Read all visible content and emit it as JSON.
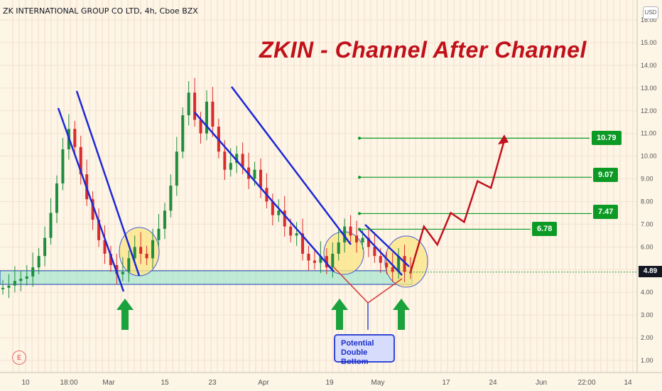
{
  "symbol_line": "ZK INTERNATIONAL GROUP CO LTD, 4h, Cboe BZX",
  "currency": "USD",
  "headline": "ZKIN - Channel After Channel",
  "callout_line1": "Potential",
  "callout_line2": "Double Bottom",
  "current_price": "4.89",
  "event_badge": "E",
  "colors": {
    "bull": "#1e8e3e",
    "bear": "#d92b2b",
    "channel": "#1c27d6",
    "projection": "#c1121f",
    "target": "#0c9a25",
    "support_fill": "#a8e6d0",
    "highlight": "#fbe68a",
    "arrow": "#1aa33c"
  },
  "chart_data": {
    "type": "candlestick",
    "y_axis_ticks": [
      "1.00",
      "2.00",
      "3.00",
      "4.00",
      "5.00",
      "6.00",
      "7.00",
      "8.00",
      "9.00",
      "10.00",
      "11.00",
      "12.00",
      "13.00",
      "14.00",
      "15.00",
      "16.00"
    ],
    "y_range": [
      0.5,
      16.3
    ],
    "x_axis_ticks": [
      "10",
      "18:00",
      "Mar",
      "15",
      "23",
      "Apr",
      "19",
      "May",
      "17",
      "24",
      "Jun",
      "22:00",
      "14"
    ],
    "support_zone": [
      4.35,
      4.95
    ],
    "current_price": 4.89,
    "target_levels": [
      {
        "value": 10.79,
        "label": "10.79"
      },
      {
        "value": 9.07,
        "label": "9.07"
      },
      {
        "value": 7.47,
        "label": "7.47"
      },
      {
        "value": 6.78,
        "label": "6.78"
      }
    ],
    "price_path": [
      4.2,
      4.3,
      4.5,
      4.6,
      4.7,
      5.1,
      5.6,
      6.4,
      7.5,
      8.8,
      10.3,
      11.2,
      10.4,
      9.2,
      8.1,
      7.2,
      6.3,
      5.7,
      5.2,
      4.8,
      4.9,
      5.5,
      6.0,
      5.7,
      5.5,
      6.3,
      6.8,
      7.6,
      8.7,
      10.2,
      11.8,
      12.8,
      11.6,
      11.0,
      12.4,
      11.3,
      10.2,
      9.4,
      9.7,
      10.1,
      9.5,
      9.0,
      9.4,
      8.6,
      8.0,
      7.4,
      7.6,
      6.9,
      6.5,
      6.6,
      5.7,
      5.4,
      5.3,
      5.6,
      5.1,
      5.7,
      6.2,
      6.9,
      6.5,
      6.2,
      6.4,
      6.0,
      5.6,
      5.3,
      5.1,
      4.9,
      5.6,
      4.9,
      4.89
    ],
    "projection_path": [
      [
        4.9,
        0
      ],
      [
        6.9,
        1
      ],
      [
        6.1,
        2
      ],
      [
        7.5,
        3
      ],
      [
        7.1,
        4
      ],
      [
        8.9,
        5
      ],
      [
        8.6,
        6
      ],
      [
        10.7,
        7
      ]
    ]
  }
}
